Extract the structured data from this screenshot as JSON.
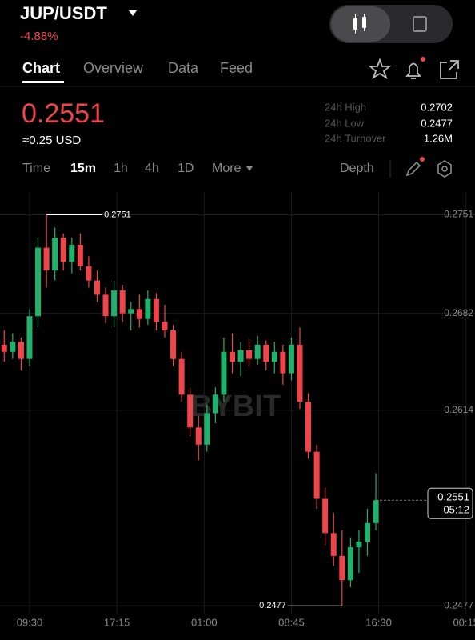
{
  "header": {
    "symbol": "JUP/USDT",
    "change": "-4.88%",
    "tabs": [
      "Chart",
      "Overview",
      "Data",
      "Feed"
    ]
  },
  "ticker": {
    "price": "0.2551",
    "approx": "≈0.25 USD",
    "stats": [
      {
        "label": "24h High",
        "value": "0.2702"
      },
      {
        "label": "24h Low",
        "value": "0.2477"
      },
      {
        "label": "24h Turnover",
        "value": "1.26M"
      }
    ]
  },
  "toolbar": {
    "intervals": [
      "Time",
      "15m",
      "1h",
      "4h",
      "1D",
      "More"
    ],
    "depth": "Depth"
  },
  "chart_data": {
    "type": "candlestick",
    "watermark": "BYBIT",
    "x": [
      -9,
      -6,
      -3,
      0,
      3,
      6,
      9,
      12,
      15,
      18,
      21,
      24,
      27,
      30,
      33,
      36,
      39,
      42,
      45,
      48,
      51,
      54,
      57,
      60,
      63,
      66,
      69,
      72,
      75,
      78,
      81,
      84,
      87,
      90,
      93,
      96,
      99,
      102,
      105,
      108,
      111,
      114,
      117,
      120,
      123
    ],
    "open": [
      0.266,
      0.2655,
      0.2662,
      0.265,
      0.268,
      0.2728,
      0.2712,
      0.2735,
      0.2718,
      0.273,
      0.2715,
      0.2705,
      0.2695,
      0.268,
      0.2698,
      0.2682,
      0.2685,
      0.2678,
      0.2692,
      0.2676,
      0.267,
      0.265,
      0.2625,
      0.2602,
      0.259,
      0.2612,
      0.2625,
      0.2655,
      0.2648,
      0.2656,
      0.265,
      0.266,
      0.2648,
      0.2655,
      0.264,
      0.266,
      0.262,
      0.2585,
      0.2552,
      0.2528,
      0.2512,
      0.2495,
      0.2518,
      0.2522,
      0.2535
    ],
    "high": [
      0.267,
      0.2668,
      0.2665,
      0.2685,
      0.2735,
      0.2751,
      0.2742,
      0.2738,
      0.2735,
      0.2738,
      0.2722,
      0.2712,
      0.27,
      0.2705,
      0.2702,
      0.269,
      0.2695,
      0.2698,
      0.2696,
      0.2688,
      0.2674,
      0.2655,
      0.263,
      0.261,
      0.2618,
      0.263,
      0.2665,
      0.2668,
      0.2662,
      0.2664,
      0.2666,
      0.2663,
      0.2662,
      0.266,
      0.2665,
      0.2672,
      0.2626,
      0.259,
      0.256,
      0.2542,
      0.253,
      0.2525,
      0.253,
      0.2545,
      0.257
    ],
    "low": [
      0.2648,
      0.265,
      0.2642,
      0.2645,
      0.2672,
      0.27,
      0.2705,
      0.2712,
      0.271,
      0.2712,
      0.27,
      0.269,
      0.2675,
      0.2672,
      0.2676,
      0.267,
      0.2672,
      0.2674,
      0.267,
      0.2665,
      0.2645,
      0.262,
      0.2596,
      0.2579,
      0.2585,
      0.2605,
      0.262,
      0.264,
      0.2638,
      0.2645,
      0.2646,
      0.2642,
      0.264,
      0.2632,
      0.2635,
      0.2615,
      0.258,
      0.2545,
      0.252,
      0.2505,
      0.2477,
      0.249,
      0.25,
      0.2512,
      0.253
    ],
    "close": [
      0.2655,
      0.2662,
      0.265,
      0.268,
      0.2728,
      0.2712,
      0.2735,
      0.2718,
      0.273,
      0.2715,
      0.2705,
      0.2695,
      0.268,
      0.2698,
      0.2682,
      0.2685,
      0.2678,
      0.2692,
      0.2676,
      0.267,
      0.265,
      0.2625,
      0.2602,
      0.259,
      0.2612,
      0.2625,
      0.2655,
      0.2648,
      0.2656,
      0.265,
      0.266,
      0.2648,
      0.2655,
      0.264,
      0.266,
      0.262,
      0.2585,
      0.2552,
      0.2528,
      0.2512,
      0.2495,
      0.2518,
      0.2522,
      0.2535,
      0.2551
    ],
    "up_color": "#20b26c",
    "down_color": "#ef454a",
    "xlim": [
      -10.5,
      158.2
    ],
    "xticks": [
      {
        "value": 0,
        "label": "09:30"
      },
      {
        "value": 31,
        "label": "17:15"
      },
      {
        "value": 62,
        "label": "01:00"
      },
      {
        "value": 93,
        "label": "08:45"
      },
      {
        "value": 124,
        "label": "16:30"
      },
      {
        "value": 155,
        "label": "00:15"
      }
    ],
    "ylim": [
      0.2471,
      0.2767
    ],
    "yticks": [
      0.2477,
      0.2614,
      0.2682,
      0.2751
    ],
    "grid": true,
    "max_label": 0.2751,
    "min_label": 0.2477,
    "last_price": 0.2551,
    "countdown": "05:12"
  }
}
